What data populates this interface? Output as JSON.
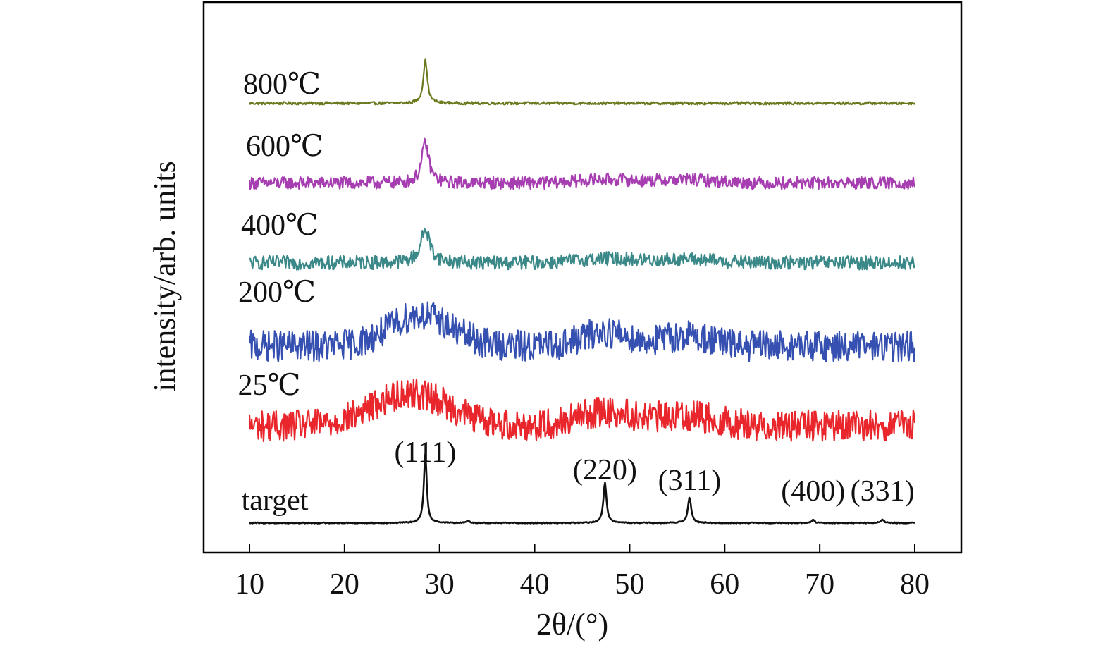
{
  "chart_data": {
    "type": "line",
    "title": "",
    "xlabel": "2θ/(°)",
    "ylabel": "intensity/arb. units",
    "xlim": [
      5,
      83
    ],
    "x_ticks": [
      10,
      20,
      30,
      40,
      50,
      60,
      70,
      80
    ],
    "x_tick_labels": [
      "10",
      "20",
      "30",
      "40",
      "50",
      "60",
      "70",
      "80"
    ],
    "y_ticks_shown": false,
    "grid": false,
    "legend": "none",
    "series": [
      {
        "name": "800℃",
        "color": "#6b7a1f",
        "baseline": 0.93,
        "noise": 0.004,
        "peaks": [
          {
            "x": 28.5,
            "height": 0.125,
            "width": 0.25
          }
        ],
        "humps": []
      },
      {
        "name": "600℃",
        "color": "#a63db0",
        "baseline": 0.7,
        "noise": 0.018,
        "peaks": [
          {
            "x": 28.5,
            "height": 0.115,
            "width": 0.45
          }
        ],
        "humps": [
          {
            "x": 47.5,
            "height": 0.01,
            "width": 3
          },
          {
            "x": 56,
            "height": 0.01,
            "width": 3
          }
        ]
      },
      {
        "name": "400℃",
        "color": "#3a8888",
        "baseline": 0.47,
        "noise": 0.02,
        "peaks": [
          {
            "x": 28.5,
            "height": 0.095,
            "width": 0.6
          }
        ],
        "humps": [
          {
            "x": 47.5,
            "height": 0.012,
            "width": 3
          },
          {
            "x": 56,
            "height": 0.01,
            "width": 3
          }
        ]
      },
      {
        "name": "200℃",
        "color": "#3550b0",
        "baseline": 0.23,
        "noise": 0.045,
        "peaks": [],
        "humps": [
          {
            "x": 28,
            "height": 0.09,
            "width": 3.2
          },
          {
            "x": 47.5,
            "height": 0.04,
            "width": 2.5
          },
          {
            "x": 56,
            "height": 0.03,
            "width": 2.5
          }
        ]
      },
      {
        "name": "25℃",
        "color": "#e8262c",
        "baseline": 0.0,
        "noise": 0.045,
        "peaks": [],
        "humps": [
          {
            "x": 27,
            "height": 0.095,
            "width": 4
          },
          {
            "x": 47.5,
            "height": 0.04,
            "width": 3
          },
          {
            "x": 56,
            "height": 0.03,
            "width": 3
          }
        ]
      },
      {
        "name": "target",
        "color": "#111111",
        "baseline": -0.28,
        "noise": 0.0015,
        "peaks": [
          {
            "x": 28.5,
            "height": 0.2,
            "width": 0.18
          },
          {
            "x": 33.0,
            "height": 0.008,
            "width": 0.15
          },
          {
            "x": 47.4,
            "height": 0.115,
            "width": 0.2
          },
          {
            "x": 56.3,
            "height": 0.075,
            "width": 0.2
          },
          {
            "x": 69.3,
            "height": 0.008,
            "width": 0.2
          },
          {
            "x": 76.6,
            "height": 0.01,
            "width": 0.2
          }
        ],
        "humps": []
      }
    ],
    "annotations": [
      {
        "text": "(111)",
        "x": 28.5
      },
      {
        "text": "(220)",
        "x": 47.4
      },
      {
        "text": "(311)",
        "x": 56.3
      },
      {
        "text": "(400)",
        "x": 69.3
      },
      {
        "text": "(331)",
        "x": 76.6
      }
    ]
  }
}
